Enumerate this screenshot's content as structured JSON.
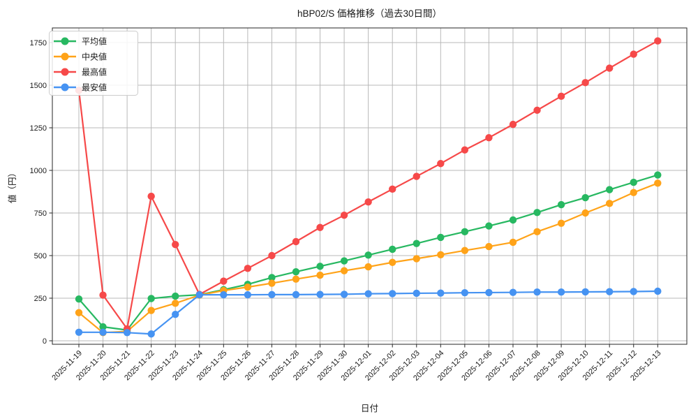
{
  "title": "hBP02/S 価格推移（過去30日間）",
  "colors": {
    "background": "#ffffff",
    "grid": "#b8b8b8",
    "axis": "#262626",
    "text": "#1a1a1a",
    "legend_border": "#cccccc"
  },
  "legend": {
    "position": "upper-left",
    "items": [
      "平均値",
      "中央値",
      "最高値",
      "最安値"
    ]
  },
  "chart_data": {
    "type": "line",
    "title": "hBP02/S 価格推移（過去30日間）",
    "xlabel": "日付",
    "ylabel": "値（円）",
    "grid": true,
    "legend_position": "upper-left",
    "ylim": [
      -25,
      1840
    ],
    "yticks": [
      0,
      250,
      500,
      750,
      1000,
      1250,
      1500,
      1750
    ],
    "categories": [
      "2025-11-19",
      "2025-11-20",
      "2025-11-21",
      "2025-11-22",
      "2025-11-23",
      "2025-11-24",
      "2025-11-25",
      "2025-11-26",
      "2025-11-27",
      "2025-11-28",
      "2025-11-29",
      "2025-11-30",
      "2025-12-01",
      "2025-12-02",
      "2025-12-03",
      "2025-12-04",
      "2025-12-05",
      "2025-12-06",
      "2025-12-07",
      "2025-12-08",
      "2025-12-09",
      "2025-12-10",
      "2025-12-11",
      "2025-12-12",
      "2025-12-13"
    ],
    "series": [
      {
        "name": "平均値",
        "color": "#27b861",
        "values": [
          245,
          82,
          63,
          248,
          262,
          270,
          300,
          331,
          371,
          405,
          437,
          469,
          503,
          537,
          571,
          607,
          640,
          674,
          709,
          753,
          799,
          840,
          887,
          930,
          973
        ]
      },
      {
        "name": "中央値",
        "color": "#ffa319",
        "values": [
          165,
          48,
          55,
          178,
          220,
          268,
          295,
          315,
          338,
          362,
          385,
          411,
          434,
          460,
          482,
          505,
          530,
          553,
          578,
          640,
          690,
          750,
          806,
          870,
          925
        ]
      },
      {
        "name": "最高値",
        "color": "#f64949",
        "values": [
          1470,
          268,
          70,
          848,
          565,
          272,
          350,
          425,
          500,
          582,
          665,
          737,
          815,
          890,
          965,
          1040,
          1120,
          1192,
          1270,
          1353,
          1435,
          1515,
          1600,
          1682,
          1760
        ]
      },
      {
        "name": "最安値",
        "color": "#4693f2",
        "values": [
          50,
          50,
          48,
          40,
          155,
          270,
          270,
          270,
          271,
          271,
          272,
          273,
          276,
          277,
          279,
          280,
          282,
          283,
          284,
          286,
          286,
          287,
          288,
          289,
          291
        ]
      }
    ]
  }
}
